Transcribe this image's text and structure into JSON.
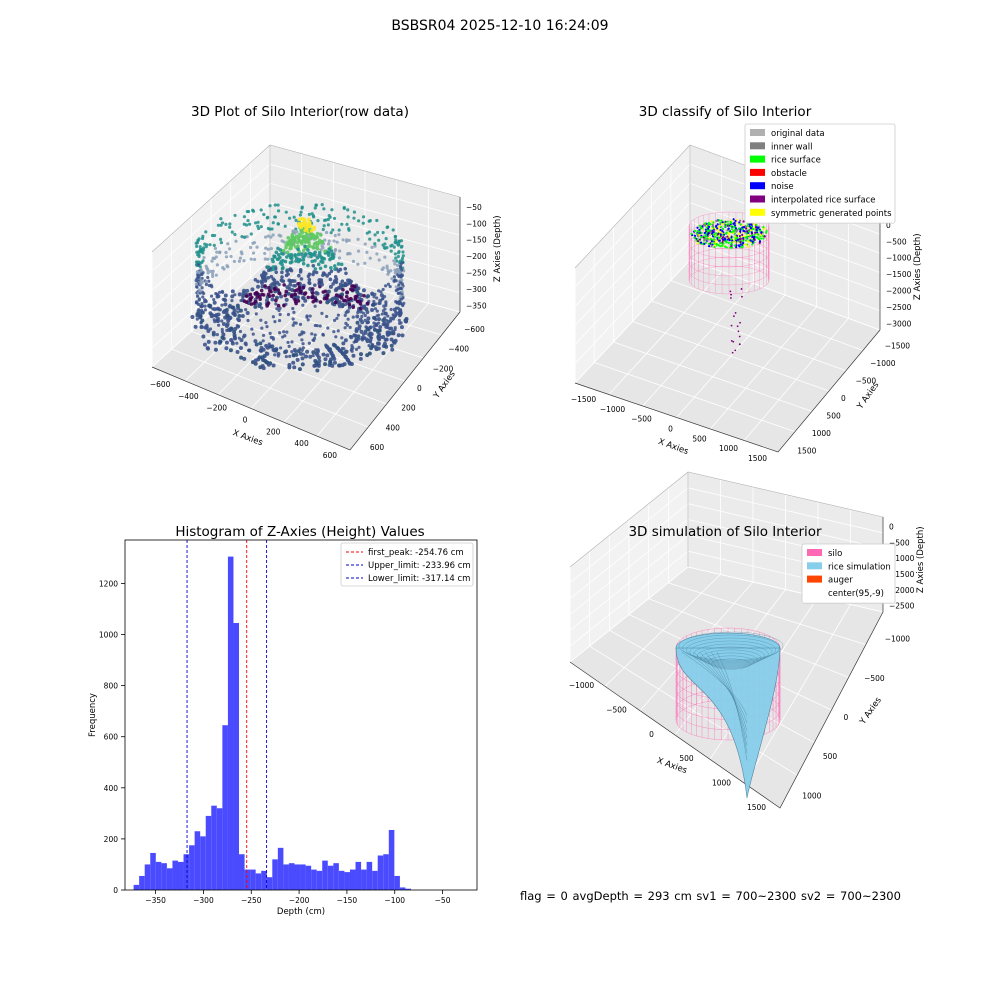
{
  "figure": {
    "suptitle": "BSBSR04 2025-12-10 16:24:09"
  },
  "status_line": "flag = 0     avgDepth = 293 cm  sv1 = 700~2300  sv2 = 700~2300",
  "colors": {
    "viridis": [
      "#440154",
      "#3b528b",
      "#21918c",
      "#5ec962",
      "#fde725"
    ],
    "hist_bar": "#4a4aff",
    "peak_line": "#ff0000",
    "limit_line": "#0000cc",
    "silo": "#ff69b4",
    "rice": "#87ceeb",
    "auger": "#ff4500"
  },
  "chart_data": [
    {
      "type": "scatter",
      "projection": "3d",
      "title": "3D Plot of Silo Interior(row data)",
      "xlabel": "X Axies",
      "ylabel": "Y Axies",
      "zlabel": "Z Axies (Depth)",
      "xticks": [
        "−600",
        "−400",
        "−200",
        "0",
        "200",
        "400",
        "600"
      ],
      "yticks": [
        "600",
        "400",
        "200",
        "0",
        "−200",
        "−400",
        "−600"
      ],
      "zticks": [
        "−50",
        "−100",
        "−150",
        "−200",
        "−250",
        "−300",
        "−350"
      ],
      "colormap": "viridis",
      "grid": true
    },
    {
      "type": "scatter",
      "projection": "3d",
      "title": "3D classify of Silo Interior",
      "xlabel": "X Axies",
      "ylabel": "Y Axies",
      "zlabel": "Z Axies (Depth)",
      "xticks": [
        "−1500",
        "−1000",
        "−500",
        "0",
        "500",
        "1000",
        "1500"
      ],
      "yticks": [
        "1500",
        "1000",
        "500",
        "0",
        "−500",
        "−1000",
        "−1500"
      ],
      "zticks": [
        "0",
        "−500",
        "−1000",
        "−1500",
        "−2000",
        "−2500",
        "−3000"
      ],
      "legend_position": "top-right",
      "legend": [
        {
          "label": "original data",
          "color": "#b0b0b0"
        },
        {
          "label": "inner wall",
          "color": "#808080"
        },
        {
          "label": "rice surface",
          "color": "#00ff00"
        },
        {
          "label": "obstacle",
          "color": "#ff0000"
        },
        {
          "label": "noise",
          "color": "#0000ff"
        },
        {
          "label": "interpolated rice surface",
          "color": "#800080"
        },
        {
          "label": "symmetric generated points",
          "color": "#ffff00"
        }
      ],
      "grid": true
    },
    {
      "type": "bar",
      "title": "Histogram of Z-Axies (Height) Values",
      "xlabel": "Depth (cm)",
      "ylabel": "Frequency",
      "xlim": [
        -382,
        -14
      ],
      "ylim": [
        0,
        1370
      ],
      "xticks": [
        -350,
        -300,
        -250,
        -200,
        -150,
        -100,
        -50
      ],
      "yticks": [
        0,
        200,
        400,
        600,
        800,
        1000,
        1200
      ],
      "bin_start": -373,
      "bin_width": 5.8,
      "values": [
        20,
        55,
        100,
        145,
        110,
        105,
        85,
        115,
        110,
        140,
        175,
        230,
        210,
        290,
        330,
        320,
        645,
        1305,
        1045,
        140,
        80,
        80,
        65,
        75,
        50,
        120,
        165,
        100,
        105,
        100,
        100,
        95,
        80,
        75,
        115,
        95,
        105,
        75,
        70,
        80,
        110,
        80,
        110,
        75,
        135,
        140,
        235,
        55,
        10,
        5
      ],
      "lines": [
        {
          "label": "first_peak: -254.76 cm",
          "x": -254.76,
          "color": "#ff0000"
        },
        {
          "label": "Upper_limit: -233.96 cm",
          "x": -233.96,
          "color": "#0000cc"
        },
        {
          "label": "Lower_limit: -317.14 cm",
          "x": -317.14,
          "color": "#0000cc"
        }
      ],
      "legend_position": "top-right"
    },
    {
      "type": "area",
      "projection": "3d",
      "title": "3D simulation of Silo Interior",
      "xlabel": "X Axies",
      "ylabel": "Y Axies",
      "zlabel": "Z Axies (Depth)",
      "xticks": [
        "−1000",
        "−500",
        "0",
        "500",
        "1000",
        "1500"
      ],
      "yticks": [
        "1000",
        "500",
        "0",
        "−500",
        "−1000"
      ],
      "zticks": [
        "0",
        "−500",
        "−1000",
        "−1500",
        "−2000",
        "−2500"
      ],
      "legend_position": "top-right",
      "legend": [
        {
          "label": "silo",
          "color": "#ff69b4"
        },
        {
          "label": "rice simulation",
          "color": "#87ceeb"
        },
        {
          "label": "auger",
          "color": "#ff4500"
        },
        {
          "label": "center(95,-9)",
          "color": ""
        }
      ],
      "grid": true
    }
  ]
}
